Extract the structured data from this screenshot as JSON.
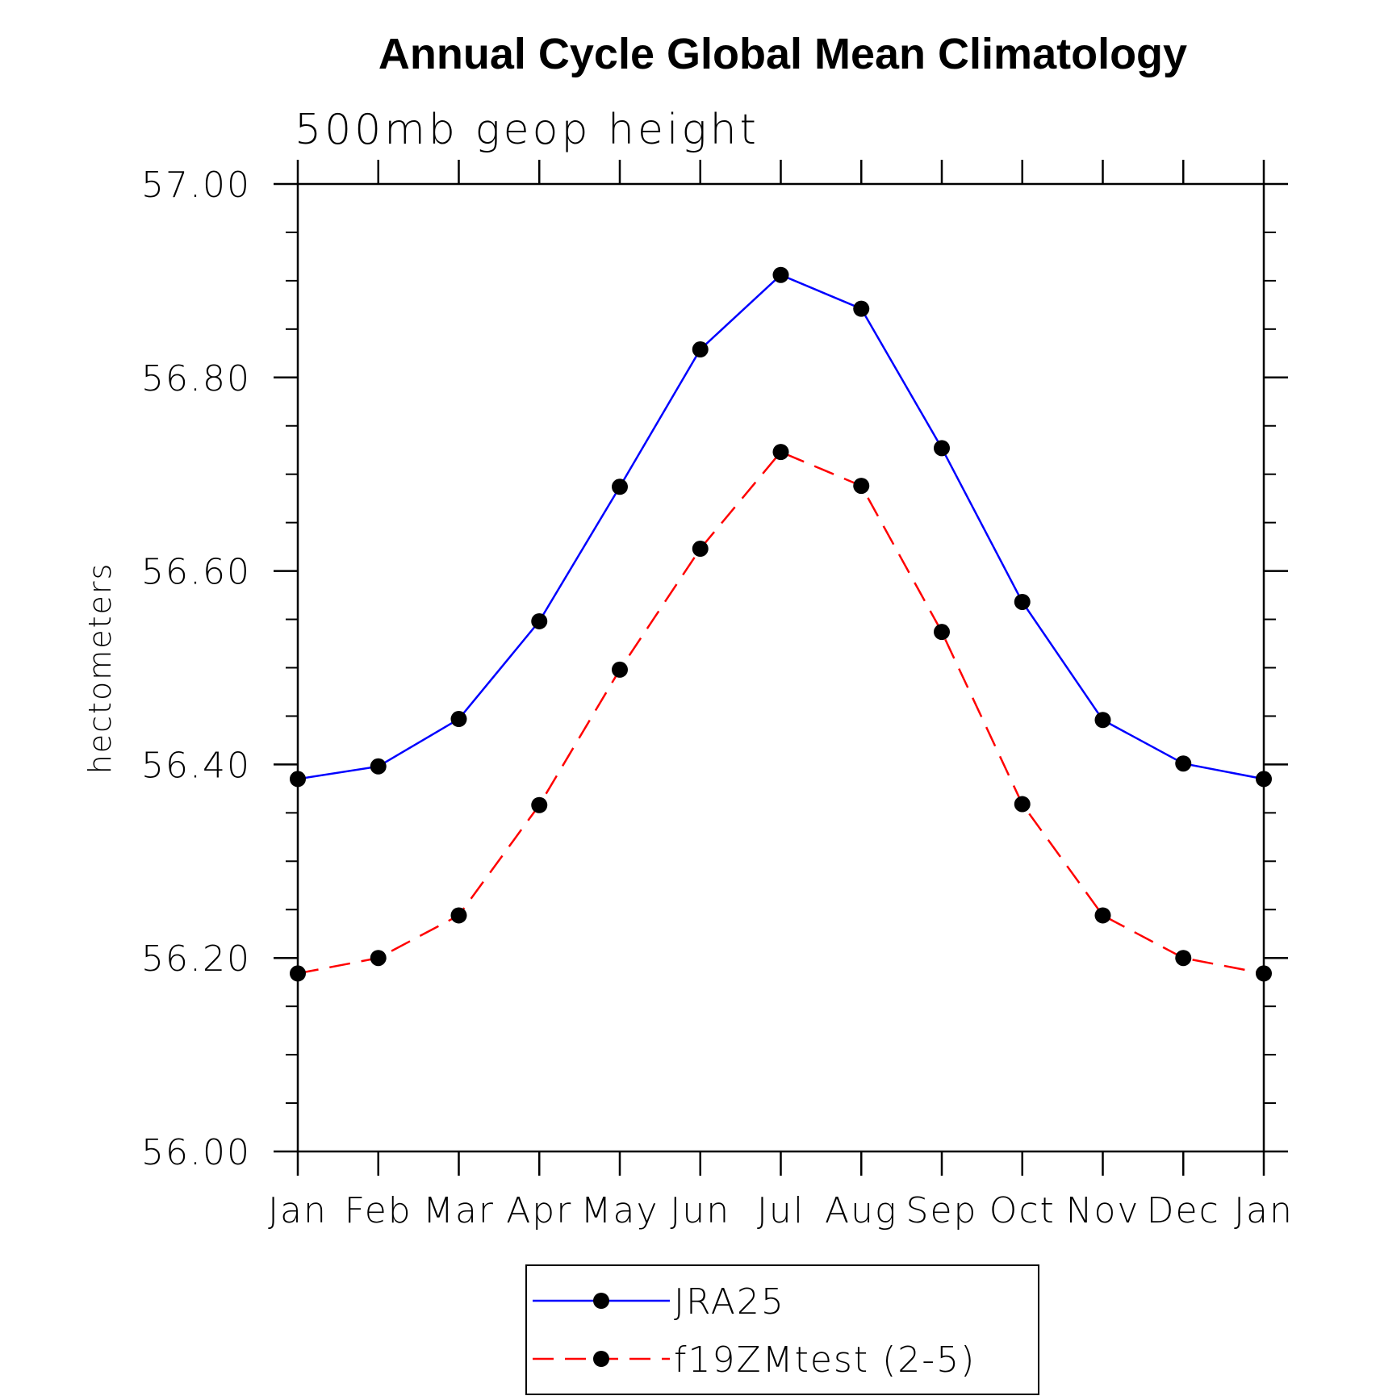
{
  "chart_data": {
    "type": "line",
    "title": "Annual Cycle Global Mean Climatology",
    "subtitle": "500mb geop height",
    "xlabel": "",
    "ylabel": "hectometers",
    "categories": [
      "Jan",
      "Feb",
      "Mar",
      "Apr",
      "May",
      "Jun",
      "Jul",
      "Aug",
      "Sep",
      "Oct",
      "Nov",
      "Dec",
      "Jan"
    ],
    "ylim": [
      56.0,
      57.0
    ],
    "yticks": [
      "56.00",
      "56.20",
      "56.40",
      "56.60",
      "56.80",
      "57.00"
    ],
    "y_minor_step": 0.05,
    "grid": false,
    "legend_position": "bottom-center",
    "series": [
      {
        "name": "JRA25",
        "color": "#0000ff",
        "dash": "solid",
        "marker": "circle",
        "values": [
          56.385,
          56.398,
          56.447,
          56.548,
          56.687,
          56.829,
          56.906,
          56.871,
          56.727,
          56.568,
          56.446,
          56.401,
          56.385
        ]
      },
      {
        "name": "f19ZMtest (2-5)",
        "color": "#ff0000",
        "dash": "dashed",
        "marker": "circle",
        "values": [
          56.184,
          56.2,
          56.244,
          56.358,
          56.498,
          56.623,
          56.723,
          56.688,
          56.537,
          56.359,
          56.244,
          56.2,
          56.184
        ]
      }
    ]
  }
}
